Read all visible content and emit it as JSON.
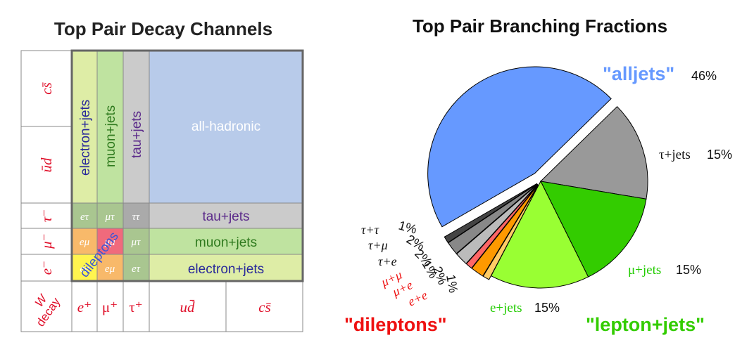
{
  "chart_data": [
    {
      "type": "table",
      "title": "Top Pair Decay Channels",
      "row_labels": [
        "cs̄",
        "ūd",
        "τ⁻",
        "μ⁻",
        "e⁻"
      ],
      "corner_label": [
        "W",
        "decay"
      ],
      "column_labels": [
        "e⁺",
        "μ⁺",
        "τ⁺",
        "ud̄",
        "cs̄"
      ],
      "regions": {
        "electron_jets_col": "electron+jets",
        "muon_jets_col": "muon+jets",
        "tau_jets_col": "tau+jets",
        "all_hadronic": "all-hadronic",
        "tau_jets_row": "tau+jets",
        "muon_jets_row": "muon+jets",
        "electron_jets_row": "electron+jets",
        "dileptons": "dileptons"
      },
      "cell_labels": {
        "tau_row": [
          "eτ",
          "μτ",
          "ττ"
        ],
        "muon_row": [
          "eμ",
          "μμ",
          "μτ"
        ],
        "electron_row": [
          "ee",
          "eμ",
          "eτ"
        ]
      },
      "colors": {
        "all_hadronic": "#b8cbea",
        "electron_jets": "#deeda6",
        "muon_jets": "#bfe3a0",
        "tau_jets": "#cbcbcb",
        "ee": "#fff44f",
        "emu": "#f8b96a",
        "mumu": "#f06a7c",
        "text_purple": "#5b2a8a",
        "text_green": "#2f7a1e",
        "text_blue": "#28289a",
        "label_red": "#e0102a"
      }
    },
    {
      "type": "pie",
      "title": "Top Pair Branching Fractions",
      "slices": [
        {
          "label": "\"alljets\"",
          "value": 46,
          "pct_label": "46%",
          "color": "#6699ff",
          "label_color": "#6699ff",
          "exploded": true
        },
        {
          "label": "τ+jets",
          "value": 15,
          "pct_label": "15%",
          "color": "#999999",
          "label_color": "#000000",
          "exploded": false
        },
        {
          "label": "μ+jets",
          "value": 15,
          "pct_label": "15%",
          "color": "#33cc00",
          "label_color": "#22cc00",
          "exploded": false
        },
        {
          "label": "e+jets",
          "value": 15,
          "pct_label": "15%",
          "color": "#99ff33",
          "label_color": "#22cc00",
          "exploded": false
        },
        {
          "label": "e+e",
          "value": 1,
          "pct_label": "1%",
          "color": "#ffcc66",
          "label_color": "#ee1111",
          "exploded": true
        },
        {
          "label": "μ+e",
          "value": 2,
          "pct_label": "2%",
          "color": "#ff9900",
          "label_color": "#ee1111",
          "exploded": true
        },
        {
          "label": "μ+μ",
          "value": 1,
          "pct_label": "1%",
          "color": "#ff6666",
          "label_color": "#ee1111",
          "exploded": true
        },
        {
          "label": "τ+e",
          "value": 2,
          "pct_label": "2%",
          "color": "#bbbbbb",
          "label_color": "#000000",
          "exploded": true
        },
        {
          "label": "τ+μ",
          "value": 2,
          "pct_label": "2%",
          "color": "#888888",
          "label_color": "#000000",
          "exploded": true
        },
        {
          "label": "τ+τ",
          "value": 1,
          "pct_label": "1%",
          "color": "#444444",
          "label_color": "#000000",
          "exploded": true
        }
      ],
      "group_labels": [
        {
          "text": "\"dileptons\"",
          "color": "#ee1111"
        },
        {
          "text": "\"lepton+jets\"",
          "color": "#33cc00"
        }
      ]
    }
  ]
}
